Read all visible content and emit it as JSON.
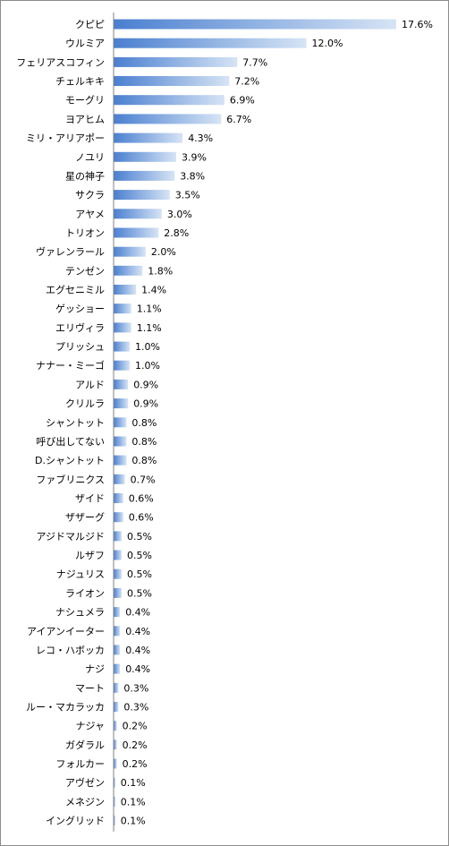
{
  "chart_data": {
    "type": "bar",
    "orientation": "horizontal",
    "categories": [
      "クピピ",
      "ウルミア",
      "フェリアスコフィン",
      "チェルキキ",
      "モーグリ",
      "ヨアヒム",
      "ミリ・アリアポー",
      "ノユリ",
      "星の神子",
      "サクラ",
      "アヤメ",
      "トリオン",
      "ヴァレンラール",
      "テンゼン",
      "エグセニミル",
      "ゲッショー",
      "エリヴィラ",
      "プリッシュ",
      "ナナー・ミーゴ",
      "アルド",
      "クリルラ",
      "シャントット",
      "呼び出してない",
      "D.シャントット",
      "ファブリニクス",
      "ザイド",
      "ザザーグ",
      "アジドマルジド",
      "ルザフ",
      "ナジュリス",
      "ライオン",
      "ナシュメラ",
      "アイアンイーター",
      "レコ・ハボッカ",
      "ナジ",
      "マート",
      "ルー・マカラッカ",
      "ナジャ",
      "ガダラル",
      "フォルカー",
      "アヴゼン",
      "メネジン",
      "イングリッド"
    ],
    "values": [
      17.6,
      12.0,
      7.7,
      7.2,
      6.9,
      6.7,
      4.3,
      3.9,
      3.8,
      3.5,
      3.0,
      2.8,
      2.0,
      1.8,
      1.4,
      1.1,
      1.1,
      1.0,
      1.0,
      0.9,
      0.9,
      0.8,
      0.8,
      0.8,
      0.7,
      0.6,
      0.6,
      0.5,
      0.5,
      0.5,
      0.5,
      0.4,
      0.4,
      0.4,
      0.4,
      0.3,
      0.3,
      0.2,
      0.2,
      0.2,
      0.1,
      0.1,
      0.1
    ],
    "value_labels": [
      "17.6%",
      "12.0%",
      "7.7%",
      "7.2%",
      "6.9%",
      "6.7%",
      "4.3%",
      "3.9%",
      "3.8%",
      "3.5%",
      "3.0%",
      "2.8%",
      "2.0%",
      "1.8%",
      "1.4%",
      "1.1%",
      "1.1%",
      "1.0%",
      "1.0%",
      "0.9%",
      "0.9%",
      "0.8%",
      "0.8%",
      "0.8%",
      "0.7%",
      "0.6%",
      "0.6%",
      "0.5%",
      "0.5%",
      "0.5%",
      "0.5%",
      "0.4%",
      "0.4%",
      "0.4%",
      "0.4%",
      "0.3%",
      "0.3%",
      "0.2%",
      "0.2%",
      "0.2%",
      "0.1%",
      "0.1%",
      "0.1%"
    ],
    "unit": "%",
    "xlim": [
      0,
      17.6
    ],
    "title": "",
    "xlabel": "",
    "ylabel": "",
    "grid": false,
    "legend": "none",
    "colors": {
      "bar_start": "#4a7fd0",
      "bar_end": "#d6e4f5",
      "axis": "#808080"
    }
  }
}
